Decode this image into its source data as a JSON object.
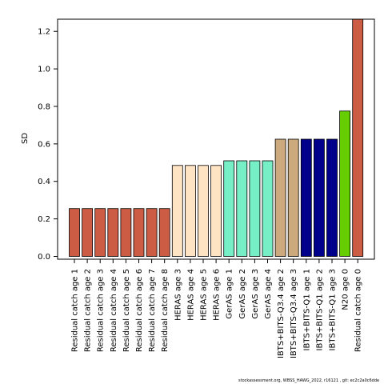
{
  "footer": "stockassessment.org, WBSS_HAWG_2022, r16121 , git: ec2c2a0c6dde",
  "chart_data": {
    "type": "bar",
    "title": "",
    "xlabel": "",
    "ylabel": "SD",
    "ylim": [
      -0.015,
      1.265
    ],
    "yticks": [
      0.0,
      0.2,
      0.4,
      0.6,
      0.8,
      1.0,
      1.2
    ],
    "ytick_labels": [
      "0.0",
      "0.2",
      "0.4",
      "0.6",
      "0.8",
      "1.0",
      "1.2"
    ],
    "grid": false,
    "categories": [
      "Residual catch age 1",
      "Residual catch age 2",
      "Residual catch age 3",
      "Residual catch age 4",
      "Residual catch age 5",
      "Residual catch age 6",
      "Residual catch age 7",
      "Residual catch age 8",
      "HERAS age 3",
      "HERAS age 4",
      "HERAS age 5",
      "HERAS age 6",
      "GerAS age 1",
      "GerAS age 2",
      "GerAS age 3",
      "GerAS age 4",
      "IBTS+BITS-Q3.4 age 2",
      "IBTS+BITS-Q3.4 age 3",
      "IBTS+BITS-Q1 age 1",
      "IBTS+BITS-Q1 age 2",
      "IBTS+BITS-Q1 age 3",
      "N20 age 0",
      "Residual catch age 0"
    ],
    "values": [
      0.255,
      0.255,
      0.255,
      0.255,
      0.255,
      0.255,
      0.255,
      0.255,
      0.485,
      0.485,
      0.485,
      0.485,
      0.51,
      0.51,
      0.51,
      0.51,
      0.625,
      0.625,
      0.625,
      0.625,
      0.625,
      0.775,
      1.265
    ],
    "colors": [
      "#CD5C45",
      "#CD5C45",
      "#CD5C45",
      "#CD5C45",
      "#CD5C45",
      "#CD5C45",
      "#CD5C45",
      "#CD5C45",
      "#FFE4C4",
      "#FFE4C4",
      "#FFE4C4",
      "#FFE4C4",
      "#76EEC6",
      "#76EEC6",
      "#76EEC6",
      "#76EEC6",
      "#CDAA7D",
      "#CDAA7D",
      "#00008B",
      "#00008B",
      "#00008B",
      "#66CD00",
      "#CD5C45"
    ]
  }
}
